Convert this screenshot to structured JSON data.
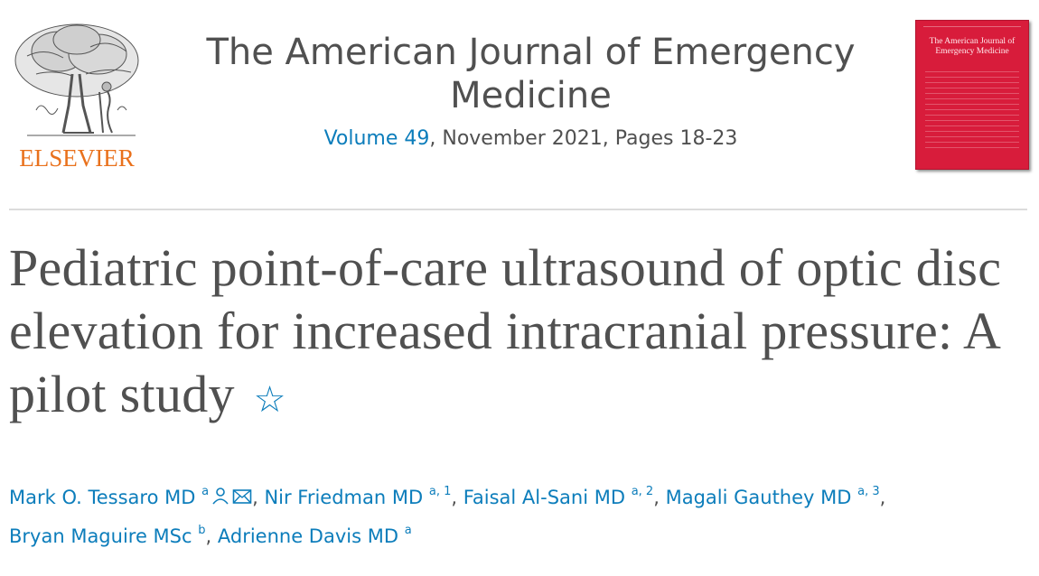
{
  "publisher": {
    "name": "ELSEVIER",
    "brand_color": "#e9711c",
    "logo_icon": "tree-engraving-icon"
  },
  "journal": {
    "title": "The American Journal of Emergency Medicine",
    "volume_link": "Volume 49",
    "issue_info": ", November 2021, Pages 18-23",
    "link_color": "#0c7dbb"
  },
  "cover": {
    "title": "The American Journal of Emergency Medicine",
    "background_color": "#d81c3b"
  },
  "article": {
    "title": "Pediatric point-of-care ultrasound of optic disc elevation for increased intracranial pressure: A pilot study",
    "footnote_icon": "star-icon",
    "footnote_symbol": "☆"
  },
  "authors": [
    {
      "name": "Mark O. Tessaro MD",
      "sup": "a",
      "icons": [
        "person-icon",
        "envelope-icon"
      ]
    },
    {
      "name": "Nir Friedman MD",
      "sup": "a, 1"
    },
    {
      "name": "Faisal Al-Sani MD",
      "sup": "a, 2"
    },
    {
      "name": "Magali Gauthey MD",
      "sup": "a, 3"
    },
    {
      "name": "Bryan Maguire MSc",
      "sup": "b"
    },
    {
      "name": "Adrienne Davis MD",
      "sup": "a"
    }
  ],
  "separator": ","
}
